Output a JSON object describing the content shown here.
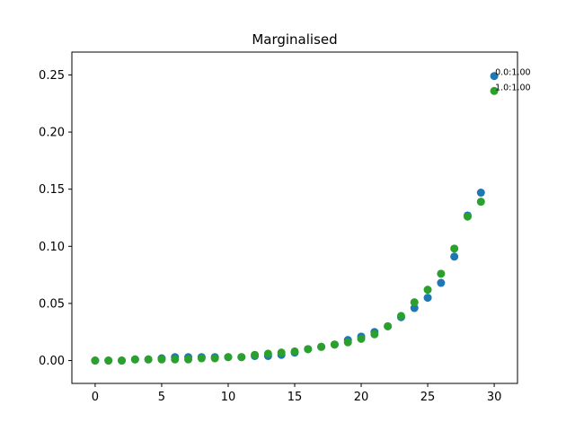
{
  "chart_data": {
    "type": "scatter",
    "title": "Marginalised",
    "xlabel": "",
    "ylabel": "",
    "xlim": [
      -1.75,
      31.75
    ],
    "ylim": [
      -0.02,
      0.27
    ],
    "xticks": [
      0,
      5,
      10,
      15,
      20,
      25,
      30
    ],
    "yticks": [
      0.0,
      0.05,
      0.1,
      0.15,
      0.2,
      0.25
    ],
    "grid": false,
    "x": [
      0,
      1,
      2,
      3,
      4,
      5,
      6,
      7,
      8,
      9,
      10,
      11,
      12,
      13,
      14,
      15,
      16,
      17,
      18,
      19,
      20,
      21,
      22,
      23,
      24,
      25,
      26,
      27,
      28,
      29,
      30
    ],
    "series": [
      {
        "color": "#1f77b4",
        "values": [
          0.0,
          0.0,
          0.0,
          0.001,
          0.001,
          0.002,
          0.003,
          0.003,
          0.003,
          0.003,
          0.003,
          0.003,
          0.004,
          0.004,
          0.005,
          0.007,
          0.01,
          0.012,
          0.014,
          0.018,
          0.021,
          0.025,
          0.03,
          0.038,
          0.046,
          0.055,
          0.068,
          0.091,
          0.127,
          0.147,
          0.249
        ]
      },
      {
        "color": "#2ca02c",
        "values": [
          0.0,
          0.0,
          0.0,
          0.001,
          0.001,
          0.001,
          0.001,
          0.001,
          0.002,
          0.002,
          0.003,
          0.003,
          0.005,
          0.006,
          0.007,
          0.008,
          0.01,
          0.012,
          0.014,
          0.016,
          0.019,
          0.023,
          0.03,
          0.039,
          0.051,
          0.062,
          0.076,
          0.098,
          0.126,
          0.139,
          0.236
        ]
      }
    ],
    "annotations": [
      {
        "text": "0.0:1.00",
        "x": 30,
        "y": 0.249
      },
      {
        "text": "1.0:1.00",
        "x": 30,
        "y": 0.236
      }
    ]
  }
}
